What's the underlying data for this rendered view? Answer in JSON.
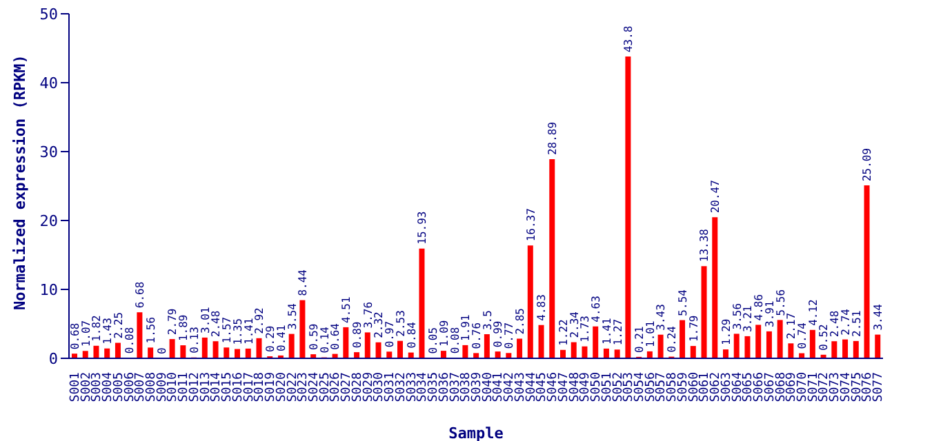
{
  "chart_data": {
    "type": "bar",
    "xlabel": "Sample",
    "ylabel": "Normalized expression (RPKM)",
    "categories": [
      "S001",
      "S002",
      "S003",
      "S004",
      "S005",
      "S006",
      "S007",
      "S008",
      "S009",
      "S010",
      "S011",
      "S012",
      "S013",
      "S014",
      "S015",
      "S016",
      "S017",
      "S018",
      "S019",
      "S020",
      "S022",
      "S023",
      "S024",
      "S025",
      "S026",
      "S027",
      "S028",
      "S029",
      "S030",
      "S031",
      "S032",
      "S033",
      "S034",
      "S035",
      "S036",
      "S037",
      "S038",
      "S039",
      "S040",
      "S041",
      "S042",
      "S043",
      "S044",
      "S045",
      "S046",
      "S047",
      "S048",
      "S049",
      "S050",
      "S051",
      "S052",
      "S053",
      "S054",
      "S056",
      "S057",
      "S058",
      "S059",
      "S060",
      "S061",
      "S062",
      "S063",
      "S064",
      "S065",
      "S066",
      "S067",
      "S068",
      "S069",
      "S070",
      "S071",
      "S072",
      "S073",
      "S074",
      "S075",
      "S076",
      "S077"
    ],
    "values": [
      0.68,
      1.07,
      1.82,
      1.43,
      2.25,
      0.08,
      6.68,
      1.56,
      0,
      2.79,
      1.89,
      0.13,
      3.01,
      2.48,
      1.57,
      1.35,
      1.41,
      2.92,
      0.29,
      0.41,
      3.54,
      8.44,
      0.59,
      0.14,
      0.64,
      4.51,
      0.89,
      3.76,
      2.32,
      0.97,
      2.53,
      0.84,
      15.93,
      0.05,
      1.09,
      0.08,
      1.91,
      0.76,
      3.5,
      0.99,
      0.77,
      2.85,
      16.37,
      4.83,
      28.89,
      1.22,
      2.34,
      1.73,
      4.63,
      1.41,
      1.27,
      43.8,
      0.21,
      1.01,
      3.43,
      0.24,
      5.54,
      1.79,
      13.38,
      20.47,
      1.29,
      3.56,
      3.21,
      4.86,
      3.91,
      5.56,
      2.17,
      0.74,
      4.12,
      0.52,
      2.48,
      2.74,
      2.51,
      25.09,
      3.44
    ],
    "color": "#ff0000",
    "ylim": [
      0,
      50
    ],
    "yticks": [
      0,
      10,
      20,
      30,
      40,
      50
    ],
    "data_labels": true,
    "grid": false,
    "legend": false
  }
}
